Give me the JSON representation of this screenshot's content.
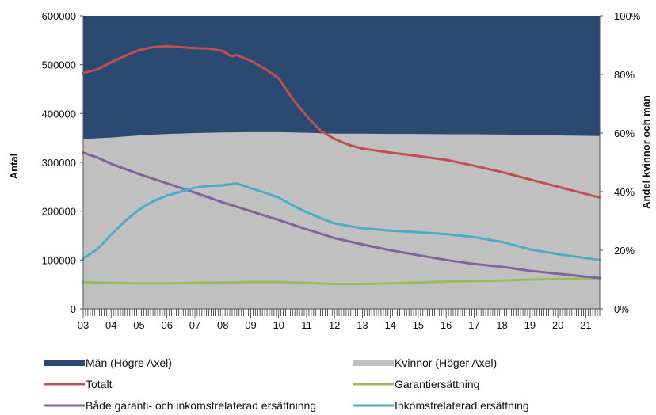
{
  "chart_data": {
    "type": "area+line",
    "ylabel_left": "Antal",
    "ylabel_right": "Andel kvinnor och män",
    "y_left_lim": [
      0,
      600000
    ],
    "y_left_ticks": [
      "0",
      "100000",
      "200000",
      "300000",
      "400000",
      "500000",
      "600000"
    ],
    "y_right_lim": [
      0,
      1
    ],
    "y_right_ticks": [
      "0%",
      "20%",
      "40%",
      "60%",
      "80%",
      "100%"
    ],
    "x_lim": [
      2003,
      2021.5
    ],
    "x_ticks": [
      "03",
      "04",
      "05",
      "06",
      "07",
      "08",
      "09",
      "10",
      "11",
      "12",
      "13",
      "14",
      "15",
      "16",
      "17",
      "18",
      "19",
      "20",
      "21"
    ],
    "area_series": [
      {
        "name": "Män (Högre Axel)",
        "axis": "right",
        "color": "#2b4a72",
        "note_values": "share men = 1 - share women"
      },
      {
        "name": "Kvinnor (Höger Axel)",
        "axis": "right",
        "color": "#c0c0c0",
        "x": [
          2003.0,
          2004.0,
          2005.0,
          2006.0,
          2007.0,
          2008.0,
          2009.0,
          2010.0,
          2011.0,
          2012.0,
          2013.0,
          2014.0,
          2015.0,
          2016.0,
          2017.0,
          2018.0,
          2019.0,
          2020.0,
          2021.5
        ],
        "values": [
          0.58,
          0.585,
          0.592,
          0.597,
          0.6,
          0.602,
          0.603,
          0.603,
          0.601,
          0.598,
          0.598,
          0.597,
          0.597,
          0.596,
          0.596,
          0.595,
          0.594,
          0.592,
          0.59
        ]
      }
    ],
    "series": [
      {
        "name": "Totalt",
        "axis": "left",
        "color": "#c0504d",
        "x": [
          2003.0,
          2003.5,
          2004.0,
          2004.5,
          2005.0,
          2005.5,
          2006.0,
          2006.5,
          2007.0,
          2007.5,
          2008.0,
          2008.3,
          2008.5,
          2009.0,
          2009.5,
          2010.0,
          2010.5,
          2011.0,
          2011.5,
          2012.0,
          2012.5,
          2013.0,
          2014.0,
          2015.0,
          2016.0,
          2017.0,
          2018.0,
          2019.0,
          2020.0,
          2021.5
        ],
        "values": [
          483000,
          490000,
          505000,
          518000,
          530000,
          536000,
          538000,
          536000,
          534000,
          533000,
          528000,
          517000,
          520000,
          508000,
          492000,
          472000,
          430000,
          395000,
          365000,
          348000,
          336000,
          328000,
          320000,
          313000,
          305000,
          293000,
          280000,
          265000,
          250000,
          228000
        ]
      },
      {
        "name": "Garantiersättning",
        "axis": "left",
        "color": "#9bbb59",
        "x": [
          2003.0,
          2004.0,
          2005.0,
          2006.0,
          2007.0,
          2008.0,
          2009.0,
          2010.0,
          2011.0,
          2012.0,
          2013.0,
          2014.0,
          2015.0,
          2016.0,
          2017.0,
          2018.0,
          2019.0,
          2020.0,
          2021.5
        ],
        "values": [
          55000,
          53000,
          52000,
          52000,
          53000,
          54000,
          55000,
          55000,
          53000,
          51000,
          51000,
          52000,
          54000,
          56000,
          57000,
          58000,
          60000,
          61000,
          63000
        ]
      },
      {
        "name": "Både garanti- och inkomstrelaterad ersättninng",
        "axis": "left",
        "color": "#8064a2",
        "x": [
          2003.0,
          2003.5,
          2004.0,
          2005.0,
          2006.0,
          2007.0,
          2008.0,
          2009.0,
          2010.0,
          2011.0,
          2012.0,
          2013.0,
          2014.0,
          2015.0,
          2016.0,
          2017.0,
          2018.0,
          2019.0,
          2020.0,
          2021.5
        ],
        "values": [
          320000,
          310000,
          297000,
          276000,
          257000,
          238000,
          218000,
          200000,
          182000,
          163000,
          145000,
          132000,
          120000,
          110000,
          100000,
          92000,
          86000,
          78000,
          72000,
          63000
        ]
      },
      {
        "name": "Inkomstrelaterad ersättning",
        "axis": "left",
        "color": "#4bacc6",
        "x": [
          2003.0,
          2003.5,
          2004.0,
          2004.5,
          2005.0,
          2005.5,
          2006.0,
          2006.5,
          2007.0,
          2007.5,
          2008.0,
          2008.5,
          2009.0,
          2009.5,
          2010.0,
          2010.5,
          2011.0,
          2011.5,
          2012.0,
          2013.0,
          2014.0,
          2015.0,
          2016.0,
          2017.0,
          2018.0,
          2019.0,
          2020.0,
          2021.5
        ],
        "values": [
          103000,
          122000,
          152000,
          180000,
          203000,
          220000,
          232000,
          240000,
          248000,
          252000,
          253000,
          257000,
          247000,
          238000,
          228000,
          212000,
          198000,
          186000,
          175000,
          165000,
          160000,
          157000,
          153000,
          147000,
          137000,
          122000,
          112000,
          100000
        ]
      }
    ]
  },
  "legend": {
    "items": [
      {
        "label": "Män (Högre Axel)",
        "kind": "block",
        "color": "#2b4a72"
      },
      {
        "label": "Kvinnor (Höger Axel)",
        "kind": "block",
        "color": "#c0c0c0"
      },
      {
        "label": "Totalt",
        "kind": "line",
        "color": "#c0504d"
      },
      {
        "label": "Garantiersättning",
        "kind": "line",
        "color": "#9bbb59"
      },
      {
        "label": "Både garanti- och inkomstrelaterad ersättninng",
        "kind": "line",
        "color": "#8064a2"
      },
      {
        "label": "Inkomstrelaterad ersättning",
        "kind": "line",
        "color": "#4bacc6"
      }
    ]
  }
}
